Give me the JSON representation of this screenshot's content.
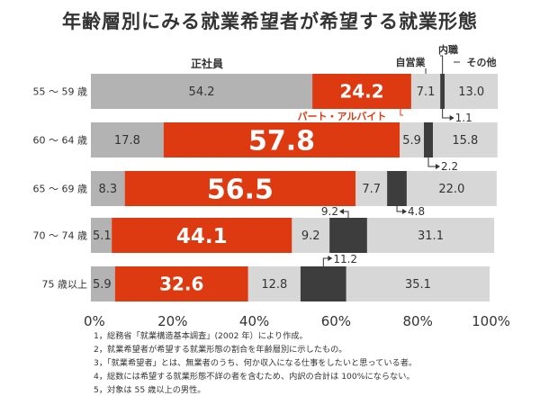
{
  "title": "年齢層別にみる就業希望者が希望する就業形態",
  "notes": [
    "1，総務省「就業構造基本調査」(2002 年）により作成。",
    "2，就業希望者が希望する就業形態の割合を年齢層別に示したもの。",
    "3，「就業希望者」とは、無業者のうち、何か収入になる仕事をしたいと思っている者。",
    "4，総数には希望する就業形態不詳の者を含むため、内訳の合計は 100%にならない。",
    "5，対象は 55 歳以上の男性。"
  ],
  "chart_data": {
    "type": "bar",
    "orientation": "horizontal",
    "stacked": true,
    "title": "年齢層別にみる就業希望者が希望する就業形態",
    "categories": [
      "55 ～ 59 歳",
      "60 ～ 64 歳",
      "65 ～ 69 歳",
      "70 ～ 74 歳",
      "75 歳以上"
    ],
    "series": [
      {
        "name": "正社員",
        "values": [
          54.2,
          17.8,
          8.3,
          5.1,
          5.9
        ],
        "color": "#b3b3b3"
      },
      {
        "name": "パート・アルバイト",
        "values": [
          24.2,
          57.8,
          56.5,
          44.1,
          32.6
        ],
        "color": "#de3a12"
      },
      {
        "name": "自営業",
        "values": [
          7.1,
          5.9,
          7.7,
          9.2,
          12.8
        ],
        "color": "#d7d7d7"
      },
      {
        "name": "内職",
        "values": [
          1.1,
          2.2,
          4.8,
          9.2,
          11.2
        ],
        "color": "#3d3d3d"
      },
      {
        "name": "その他",
        "values": [
          13.0,
          15.8,
          22.0,
          31.1,
          35.1
        ],
        "color": "#d7d7d7"
      }
    ],
    "value_labels": [
      [
        "54.2",
        "24.2",
        "7.1",
        "1.1",
        "13.0"
      ],
      [
        "17.8",
        "57.8",
        "5.9",
        "2.2",
        "15.8"
      ],
      [
        "8.3",
        "56.5",
        "7.7",
        "4.8",
        "22.0"
      ],
      [
        "5.1",
        "44.1",
        "9.2",
        "9.2",
        "31.1"
      ],
      [
        "5.9",
        "32.6",
        "12.8",
        "11.2",
        "35.1"
      ]
    ],
    "x_ticks": [
      "0%",
      "20%",
      "40%",
      "60%",
      "80%",
      "100%"
    ],
    "xlim": [
      0,
      100
    ],
    "grid": false
  }
}
